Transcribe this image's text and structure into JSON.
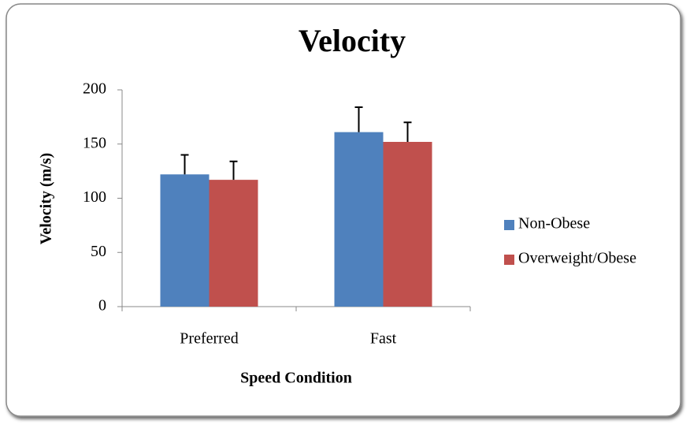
{
  "chart_data": {
    "type": "bar",
    "title": "Velocity",
    "x_label": "Speed Condition",
    "y_label": "Velocity (m/s)",
    "categories": [
      "Preferred",
      "Fast"
    ],
    "series": [
      {
        "name": "Non-Obese",
        "color": "#4f81bd",
        "values": [
          122,
          161
        ],
        "errors": [
          18,
          23
        ]
      },
      {
        "name": "Overweight/Obese",
        "color": "#c0504d",
        "values": [
          117,
          152
        ],
        "errors": [
          17,
          18
        ]
      }
    ],
    "ylim": [
      0,
      200
    ],
    "yticks": [
      0,
      50,
      100,
      150,
      200
    ],
    "legend": "right"
  }
}
